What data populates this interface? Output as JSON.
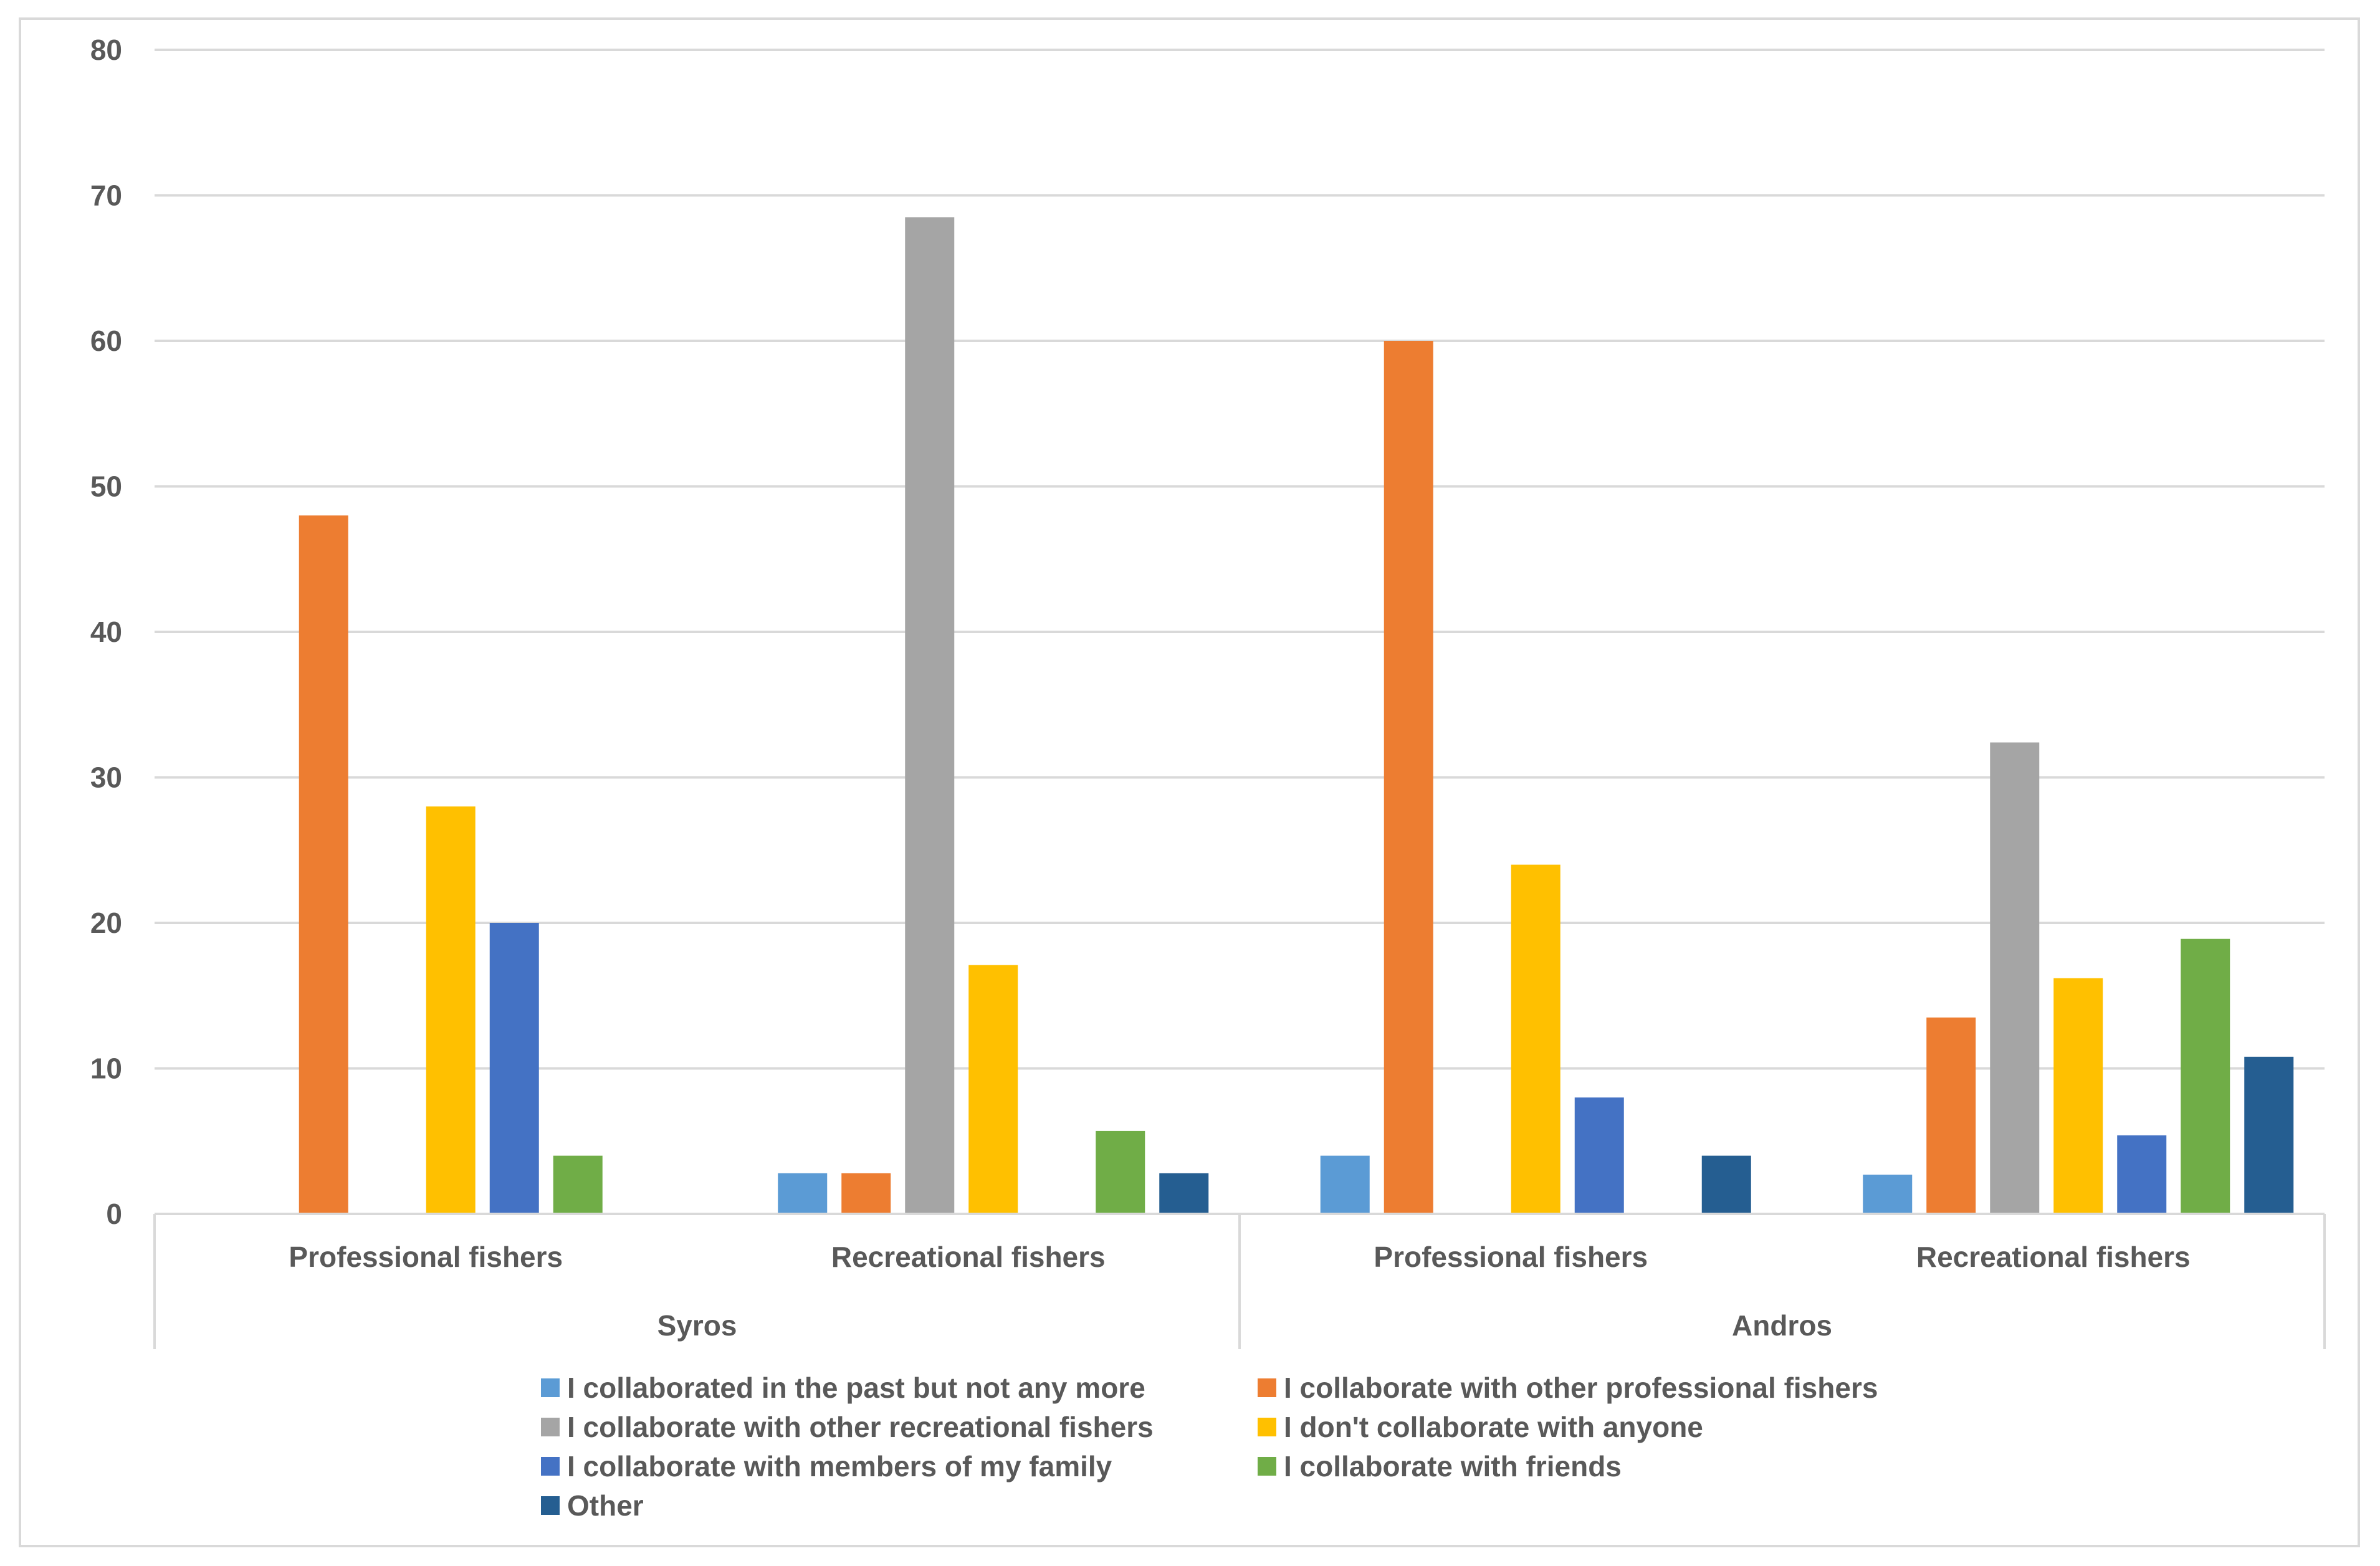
{
  "chart_data": {
    "type": "bar",
    "title": "",
    "xlabel": "",
    "ylabel": "",
    "ylim": [
      0,
      80
    ],
    "yticks": [
      0,
      10,
      20,
      30,
      40,
      50,
      60,
      70,
      80
    ],
    "grid": true,
    "legend_position": "bottom",
    "groups": [
      {
        "name": "Syros",
        "categories": [
          "Professional fishers",
          "Recreational fishers"
        ]
      },
      {
        "name": "Andros",
        "categories": [
          "Professional fishers",
          "Recreational fishers"
        ]
      }
    ],
    "categories": [
      "Syros / Professional fishers",
      "Syros / Recreational fishers",
      "Andros / Professional fishers",
      "Andros / Recreational fishers"
    ],
    "series": [
      {
        "name": "I collaborated in the past but not any more",
        "color": "#5b9bd5",
        "values": [
          0,
          2.8,
          4,
          2.7
        ]
      },
      {
        "name": "I collaborate with other professional fishers",
        "color": "#ed7d31",
        "values": [
          48,
          2.8,
          60,
          13.5
        ]
      },
      {
        "name": "I collaborate with other recreational fishers",
        "color": "#a5a5a5",
        "values": [
          0,
          68.5,
          0,
          32.4
        ]
      },
      {
        "name": "I don't collaborate with anyone",
        "color": "#ffc000",
        "values": [
          28,
          17.1,
          24,
          16.2
        ]
      },
      {
        "name": "I collaborate with members of my family",
        "color": "#4472c4",
        "values": [
          20,
          0,
          8,
          5.4
        ]
      },
      {
        "name": "I collaborate with friends",
        "color": "#70ad47",
        "values": [
          4,
          5.7,
          0,
          18.9
        ]
      },
      {
        "name": "Other",
        "color": "#255e91",
        "values": [
          0,
          2.8,
          4,
          10.8
        ]
      }
    ]
  }
}
